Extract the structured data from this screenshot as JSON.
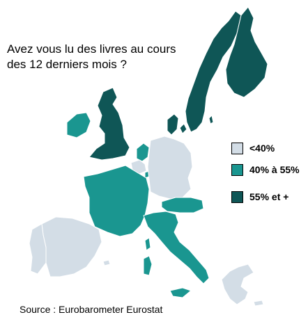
{
  "title": "Avez vous lu des livres au cours des 12 derniers mois ?",
  "legend": [
    {
      "label": "<40%",
      "color": "#d3dde6"
    },
    {
      "label": "40% à 55%",
      "color": "#1a9690"
    },
    {
      "label": "55% et +",
      "color": "#0f5656"
    }
  ],
  "source": "Source : Eurobarometer Eurostat",
  "colors": {
    "low": "#d3dde6",
    "mid": "#1a9690",
    "high": "#0f5656"
  }
}
